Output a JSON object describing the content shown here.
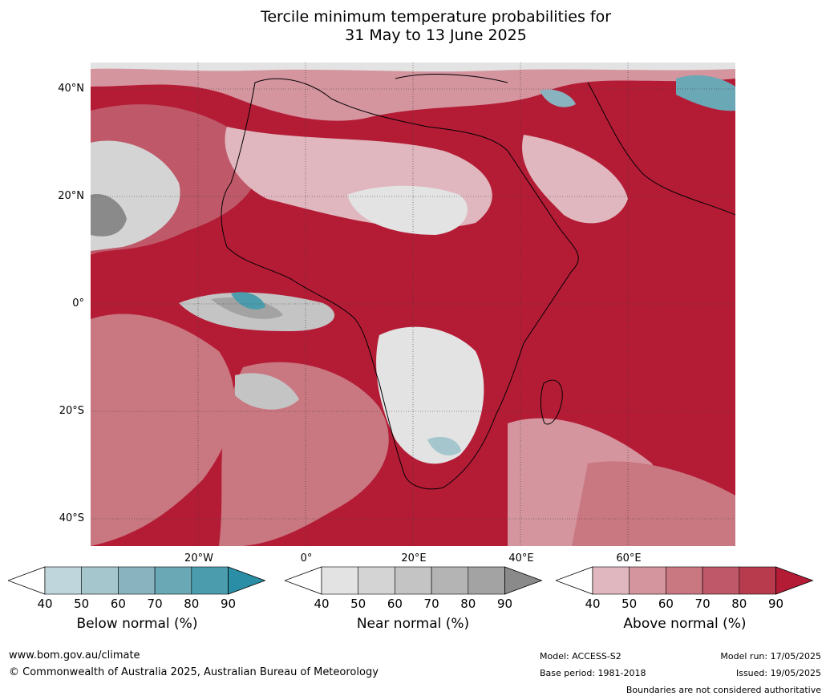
{
  "title": {
    "line1": "Tercile minimum temperature probabilities for",
    "line2": "31 May to 13 June 2025"
  },
  "map": {
    "lat_labels": [
      "40°N",
      "20°N",
      "0°",
      "20°S",
      "40°S"
    ],
    "lon_labels": [
      "20°W",
      "0°",
      "20°E",
      "40°E",
      "60°E"
    ]
  },
  "legends": [
    {
      "label": "Below normal (%)",
      "ticks": [
        "40",
        "50",
        "60",
        "70",
        "80",
        "90"
      ],
      "colors": [
        "#bfd6dd",
        "#a6c6ce",
        "#88b3bf",
        "#6aa8b5",
        "#4b9cad",
        "#2a8fa6"
      ]
    },
    {
      "label": "Near normal (%)",
      "ticks": [
        "40",
        "50",
        "60",
        "70",
        "80",
        "90"
      ],
      "colors": [
        "#e3e3e3",
        "#d4d4d4",
        "#c4c4c4",
        "#b4b4b4",
        "#a3a3a3",
        "#8a8a8a"
      ]
    },
    {
      "label": "Above normal (%)",
      "ticks": [
        "40",
        "50",
        "60",
        "70",
        "80",
        "90"
      ],
      "colors": [
        "#e0b7be",
        "#d4959f",
        "#c97780",
        "#bf5868",
        "#b73a4d",
        "#b41c36"
      ]
    }
  ],
  "footer": {
    "url": "www.bom.gov.au/climate",
    "copyright": "© Commonwealth of Australia 2025, Australian Bureau of Meteorology",
    "model": "Model: ACCESS-S2",
    "base_period": "Base period: 1981-2018",
    "model_run": "Model run: 17/05/2025",
    "issued": "Issued: 19/05/2025",
    "disclaimer": "Boundaries are not considered authoritative"
  }
}
